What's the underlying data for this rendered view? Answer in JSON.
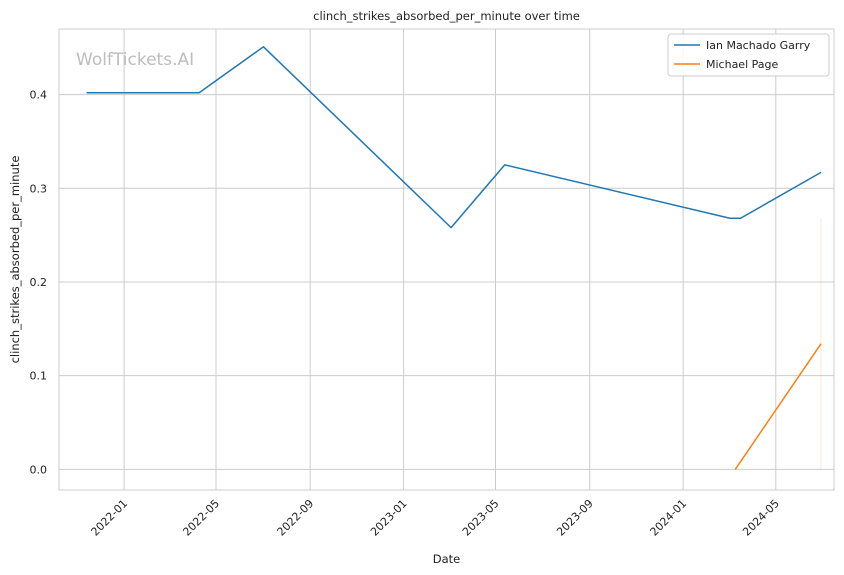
{
  "chart_data": {
    "type": "line",
    "title": "clinch_strikes_absorbed_per_minute over time",
    "xlabel": "Date",
    "ylabel": "clinch_strikes_absorbed_per_minute",
    "watermark": "WolfTickets.AI",
    "xlim": [
      "2021-10-08",
      "2024-07-16"
    ],
    "ylim": [
      -0.022,
      0.47
    ],
    "x_ticks": [
      {
        "date": "2022-01-01",
        "label": "2022-01"
      },
      {
        "date": "2022-05-01",
        "label": "2022-05"
      },
      {
        "date": "2022-09-01",
        "label": "2022-09"
      },
      {
        "date": "2023-01-01",
        "label": "2023-01"
      },
      {
        "date": "2023-05-01",
        "label": "2023-05"
      },
      {
        "date": "2023-09-01",
        "label": "2023-09"
      },
      {
        "date": "2024-01-01",
        "label": "2024-01"
      },
      {
        "date": "2024-05-01",
        "label": "2024-05"
      }
    ],
    "y_ticks": [
      {
        "value": 0.0,
        "label": "0.0"
      },
      {
        "value": 0.1,
        "label": "0.1"
      },
      {
        "value": 0.2,
        "label": "0.2"
      },
      {
        "value": 0.3,
        "label": "0.3"
      },
      {
        "value": 0.4,
        "label": "0.4"
      }
    ],
    "grid": true,
    "legend_position": "top-right",
    "series": [
      {
        "name": "Ian Machado Garry",
        "color": "#1f77b4",
        "points": [
          {
            "x": "2021-11-13",
            "y": 0.402
          },
          {
            "x": "2022-04-09",
            "y": 0.402
          },
          {
            "x": "2022-07-02",
            "y": 0.451
          },
          {
            "x": "2023-03-04",
            "y": 0.258
          },
          {
            "x": "2023-05-13",
            "y": 0.325
          },
          {
            "x": "2024-03-02",
            "y": 0.268
          },
          {
            "x": "2024-03-16",
            "y": 0.268
          },
          {
            "x": "2024-06-29",
            "y": 0.317
          }
        ]
      },
      {
        "name": "Michael Page",
        "color": "#ff7f0e",
        "points": [
          {
            "x": "2024-03-09",
            "y": 0.0
          },
          {
            "x": "2024-06-29",
            "y": 0.134
          }
        ]
      }
    ],
    "faint_vertical_line": {
      "x": "2024-06-29",
      "y_range": [
        0.0,
        0.268
      ],
      "color": "#ff7f0e"
    }
  }
}
